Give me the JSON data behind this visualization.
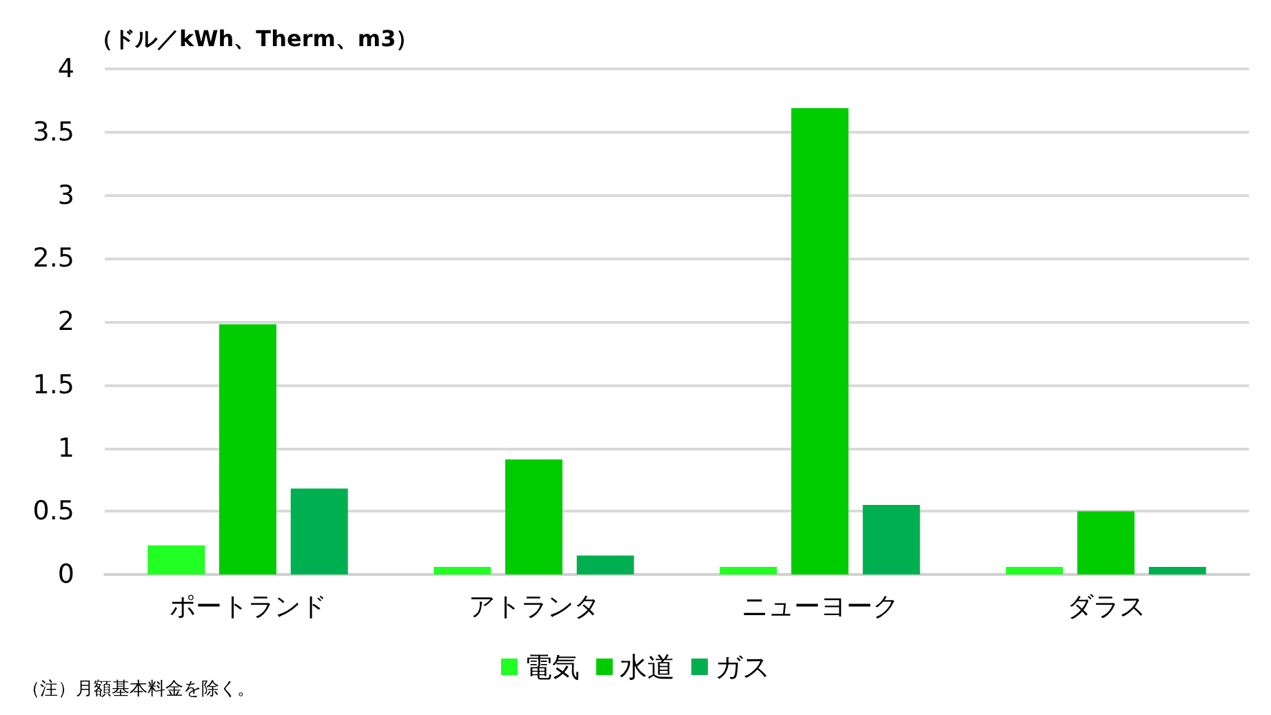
{
  "chart_data": {
    "type": "bar",
    "ylabel": "（ドル／kWh、Therm、m3）",
    "categories": [
      "ポートランド",
      "アトランタ",
      "ニューヨーク",
      "ダラス"
    ],
    "series": [
      {
        "name": "電気",
        "color": "#22ff22",
        "values": [
          0.23,
          0.06,
          0.06,
          0.06
        ]
      },
      {
        "name": "水道",
        "color": "#00cc00",
        "values": [
          1.98,
          0.91,
          3.69,
          0.5
        ]
      },
      {
        "name": "ガス",
        "color": "#00b050",
        "values": [
          0.68,
          0.15,
          0.55,
          0.06
        ]
      }
    ],
    "ylim": [
      0,
      4
    ],
    "yticks": [
      0,
      0.5,
      1,
      1.5,
      2,
      2.5,
      3,
      3.5,
      4
    ],
    "grid": "y",
    "legend": "bottom",
    "annotations": [
      "（注）月額基本料金を除く。"
    ]
  }
}
